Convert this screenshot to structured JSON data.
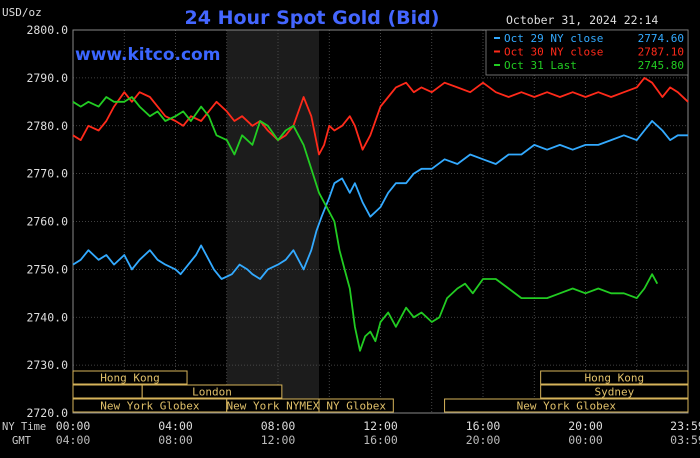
{
  "chart_data": {
    "type": "line",
    "title": "24 Hour Spot Gold (Bid)",
    "timestamp": "October 31, 2024 22:14",
    "ylabel": "USD/oz",
    "watermark": "www.kitco.com",
    "ylim": [
      2720,
      2800
    ],
    "yticks": [
      "2720.0",
      "2730.0",
      "2740.0",
      "2750.0",
      "2760.0",
      "2770.0",
      "2780.0",
      "2790.0",
      "2800.0"
    ],
    "xlim": [
      0,
      24
    ],
    "xtick_hours": [
      0,
      4,
      8,
      12,
      16,
      20,
      23.98
    ],
    "xticks_ny": [
      "00:00",
      "04:00",
      "08:00",
      "12:00",
      "16:00",
      "20:00",
      "23:59"
    ],
    "xticks_gmt": [
      "04:00",
      "08:00",
      "12:00",
      "16:00",
      "20:00",
      "00:00",
      "03:59"
    ],
    "row_labels": {
      "ny": "NY Time",
      "gmt": "GMT"
    },
    "grid": true,
    "legend_position": "top-right",
    "colors": {
      "oct29": "#33aaff",
      "oct30": "#ff2a1a",
      "oct31": "#22cc22",
      "title": "#4466ff",
      "axis_text": "#dddddd",
      "market_text": "#e0c06a"
    },
    "series": [
      {
        "name": "Oct 29 NY close",
        "value": "2774.60",
        "color": "#33aaff",
        "x": [
          0,
          0.3,
          0.6,
          1.0,
          1.3,
          1.6,
          2.0,
          2.3,
          2.6,
          3.0,
          3.3,
          3.6,
          4.0,
          4.2,
          4.5,
          4.8,
          5.0,
          5.3,
          5.5,
          5.8,
          6.2,
          6.5,
          6.8,
          7.0,
          7.3,
          7.6,
          8.0,
          8.3,
          8.6,
          9.0,
          9.3,
          9.5,
          9.7,
          10.0,
          10.2,
          10.5,
          10.8,
          11.0,
          11.3,
          11.6,
          12.0,
          12.3,
          12.6,
          13.0,
          13.3,
          13.6,
          14.0,
          14.5,
          15.0,
          15.5,
          16.0,
          16.5,
          17.0,
          17.5,
          18.0,
          18.5,
          19.0,
          19.5,
          20.0,
          20.5,
          21.0,
          21.5,
          22.0,
          22.3,
          22.6,
          23.0,
          23.3,
          23.6,
          24.0
        ],
        "y": [
          2751,
          2752,
          2754,
          2752,
          2753,
          2751,
          2753,
          2750,
          2752,
          2754,
          2752,
          2751,
          2750,
          2749,
          2751,
          2753,
          2755,
          2752,
          2750,
          2748,
          2749,
          2751,
          2750,
          2749,
          2748,
          2750,
          2751,
          2752,
          2754,
          2750,
          2754,
          2758,
          2761,
          2765,
          2768,
          2769,
          2766,
          2768,
          2764,
          2761,
          2763,
          2766,
          2768,
          2768,
          2770,
          2771,
          2771,
          2773,
          2772,
          2774,
          2773,
          2772,
          2774,
          2774,
          2776,
          2775,
          2776,
          2775,
          2776,
          2776,
          2777,
          2778,
          2777,
          2779,
          2781,
          2779,
          2777,
          2778,
          2778
        ]
      },
      {
        "name": "Oct 30 NY close",
        "value": "2787.10",
        "color": "#ff2a1a",
        "x": [
          0,
          0.3,
          0.6,
          1.0,
          1.3,
          1.6,
          2.0,
          2.3,
          2.6,
          3.0,
          3.3,
          3.6,
          4.0,
          4.3,
          4.6,
          5.0,
          5.3,
          5.6,
          6.0,
          6.3,
          6.6,
          7.0,
          7.3,
          7.6,
          8.0,
          8.3,
          8.6,
          9.0,
          9.3,
          9.6,
          9.8,
          10.0,
          10.2,
          10.5,
          10.8,
          11.0,
          11.3,
          11.6,
          12.0,
          12.3,
          12.6,
          13.0,
          13.3,
          13.6,
          14.0,
          14.5,
          15.0,
          15.5,
          16.0,
          16.5,
          17.0,
          17.5,
          18.0,
          18.5,
          19.0,
          19.5,
          20.0,
          20.5,
          21.0,
          21.5,
          22.0,
          22.3,
          22.6,
          23.0,
          23.3,
          23.6,
          24.0
        ],
        "y": [
          2778,
          2777,
          2780,
          2779,
          2781,
          2784,
          2787,
          2785,
          2787,
          2786,
          2784,
          2782,
          2781,
          2780,
          2782,
          2781,
          2783,
          2785,
          2783,
          2781,
          2782,
          2780,
          2781,
          2779,
          2777,
          2778,
          2780,
          2786,
          2782,
          2774,
          2776,
          2780,
          2779,
          2780,
          2782,
          2780,
          2775,
          2778,
          2784,
          2786,
          2788,
          2789,
          2787,
          2788,
          2787,
          2789,
          2788,
          2787,
          2789,
          2787,
          2786,
          2787,
          2786,
          2787,
          2786,
          2787,
          2786,
          2787,
          2786,
          2787,
          2788,
          2790,
          2789,
          2786,
          2788,
          2787,
          2785
        ]
      },
      {
        "name": "Oct 31 Last",
        "value": "2745.80",
        "color": "#22cc22",
        "x": [
          0,
          0.3,
          0.6,
          1.0,
          1.3,
          1.6,
          2.0,
          2.3,
          2.6,
          3.0,
          3.3,
          3.6,
          4.0,
          4.3,
          4.6,
          5.0,
          5.3,
          5.6,
          6.0,
          6.3,
          6.6,
          7.0,
          7.3,
          7.6,
          8.0,
          8.3,
          8.6,
          9.0,
          9.3,
          9.6,
          9.8,
          10.0,
          10.2,
          10.4,
          10.6,
          10.8,
          11.0,
          11.2,
          11.4,
          11.6,
          11.8,
          12.0,
          12.3,
          12.6,
          13.0,
          13.3,
          13.6,
          14.0,
          14.3,
          14.6,
          15.0,
          15.3,
          15.6,
          16.0,
          16.5,
          17.0,
          17.5,
          18.0,
          18.5,
          19.0,
          19.5,
          20.0,
          20.5,
          21.0,
          21.5,
          22.0,
          22.3,
          22.6,
          22.8
        ],
        "y": [
          2785,
          2784,
          2785,
          2784,
          2786,
          2785,
          2785,
          2786,
          2784,
          2782,
          2783,
          2781,
          2782,
          2783,
          2781,
          2784,
          2782,
          2778,
          2777,
          2774,
          2778,
          2776,
          2781,
          2780,
          2777,
          2779,
          2780,
          2776,
          2771,
          2766,
          2764,
          2762,
          2760,
          2754,
          2750,
          2746,
          2738,
          2733,
          2736,
          2737,
          2735,
          2739,
          2741,
          2738,
          2742,
          2740,
          2741,
          2739,
          2740,
          2744,
          2746,
          2747,
          2745,
          2748,
          2748,
          2746,
          2744,
          2744,
          2744,
          2745,
          2746,
          2745,
          2746,
          2745,
          2745,
          2744,
          2746,
          2749,
          2747
        ]
      }
    ],
    "markets": [
      {
        "label": "Hong Kong",
        "row": 0,
        "start": 0,
        "end": 4.45
      },
      {
        "label": "",
        "row": 1,
        "start": 0,
        "end": 2.7
      },
      {
        "label": "London",
        "row": 1,
        "start": 2.7,
        "end": 8.15
      },
      {
        "label": "New York Globex",
        "row": 2,
        "start": 0,
        "end": 6.0
      },
      {
        "label": "New York NYMEX",
        "row": 2,
        "start": 6.0,
        "end": 9.6
      },
      {
        "label": "NY Globex",
        "row": 2,
        "start": 9.6,
        "end": 12.5
      },
      {
        "label": "Hong Kong",
        "row": 0,
        "start": 18.25,
        "end": 24
      },
      {
        "label": "Sydney",
        "row": 1,
        "start": 18.25,
        "end": 24
      },
      {
        "label": "New York Globex",
        "row": 2,
        "start": 14.5,
        "end": 24
      }
    ],
    "shaded_hours": [
      6.0,
      9.6
    ]
  }
}
